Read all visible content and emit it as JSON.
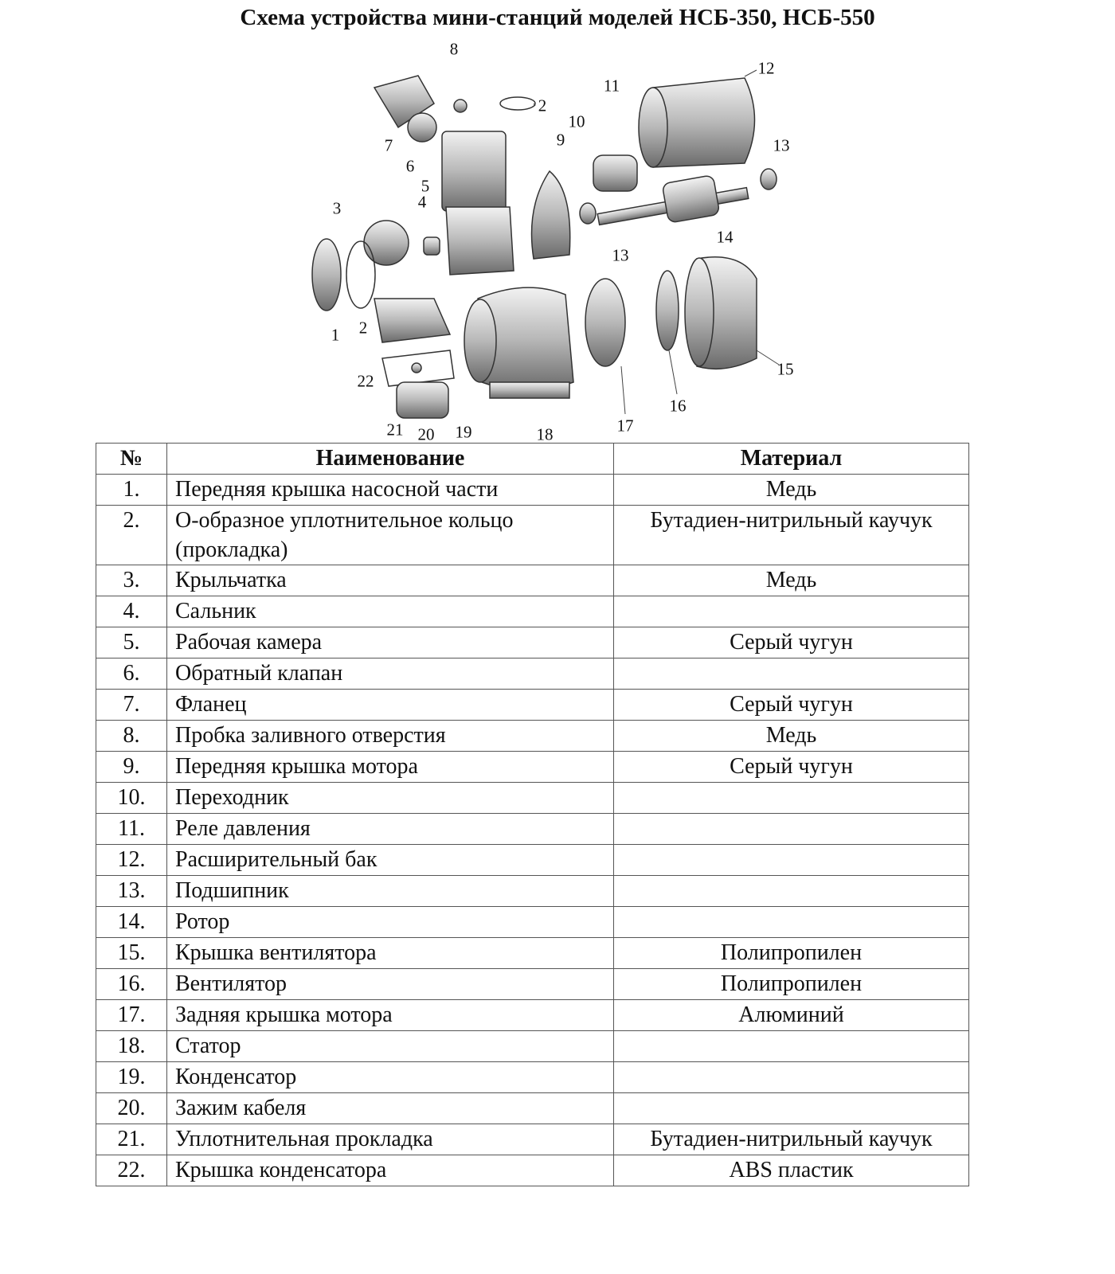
{
  "title": "Схема устройства мини-станций моделей НСБ-350, НСБ-550",
  "diagram_labels": [
    "8",
    "2",
    "11",
    "12",
    "10",
    "9",
    "7",
    "6",
    "13",
    "5",
    "4",
    "3",
    "14",
    "13",
    "1",
    "2",
    "22",
    "15",
    "16",
    "17",
    "18",
    "21",
    "20",
    "19"
  ],
  "table": {
    "headers": [
      "№",
      "Наименование",
      "Материал"
    ],
    "rows": [
      {
        "n": "1.",
        "name": "Передняя крышка насосной части",
        "material": "Медь"
      },
      {
        "n": "2.",
        "name": "О-образное уплотнительное кольцо (прокладка)",
        "material": "Бутадиен-нитрильный каучук"
      },
      {
        "n": "3.",
        "name": "Крыльчатка",
        "material": "Медь"
      },
      {
        "n": "4.",
        "name": "Сальник",
        "material": ""
      },
      {
        "n": "5.",
        "name": "Рабочая камера",
        "material": "Серый чугун"
      },
      {
        "n": "6.",
        "name": "Обратный клапан",
        "material": ""
      },
      {
        "n": "7.",
        "name": "Фланец",
        "material": "Серый чугун"
      },
      {
        "n": "8.",
        "name": "Пробка заливного отверстия",
        "material": "Медь"
      },
      {
        "n": "9.",
        "name": "Передняя крышка мотора",
        "material": "Серый чугун"
      },
      {
        "n": "10.",
        "name": "Переходник",
        "material": ""
      },
      {
        "n": "11.",
        "name": "Реле давления",
        "material": ""
      },
      {
        "n": "12.",
        "name": "Расширительный бак",
        "material": ""
      },
      {
        "n": "13.",
        "name": "Подшипник",
        "material": ""
      },
      {
        "n": "14.",
        "name": "Ротор",
        "material": ""
      },
      {
        "n": "15.",
        "name": "Крышка вентилятора",
        "material": "Полипропилен"
      },
      {
        "n": "16.",
        "name": "Вентилятор",
        "material": "Полипропилен"
      },
      {
        "n": "17.",
        "name": "Задняя крышка  мотора",
        "material": "Алюминий"
      },
      {
        "n": "18.",
        "name": "Статор",
        "material": ""
      },
      {
        "n": "19.",
        "name": "Конденсатор",
        "material": ""
      },
      {
        "n": "20.",
        "name": "Зажим кабеля",
        "material": ""
      },
      {
        "n": "21.",
        "name": "Уплотнительная прокладка",
        "material": "Бутадиен-нитрильный каучук"
      },
      {
        "n": "22.",
        "name": "Крышка конденсатора",
        "material": "ABS пластик"
      }
    ]
  }
}
